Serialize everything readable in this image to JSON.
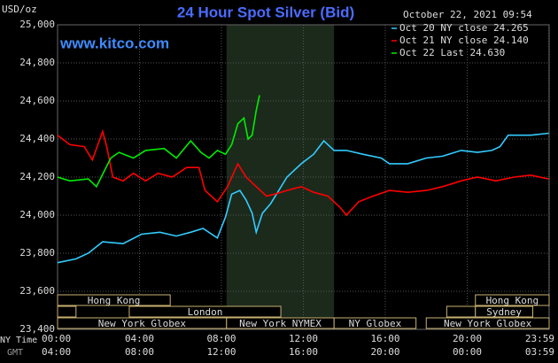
{
  "chart_data": {
    "type": "line",
    "title": "24 Hour Spot Silver (Bid)",
    "unit_label": "USD/oz",
    "timestamp": "October 22, 2021 09:54",
    "site": "www.kitco.com",
    "x_row_label": "NY Time",
    "x2_row_label": "GMT",
    "xlim": [
      0,
      24
    ],
    "xticks": [
      {
        "value": 0,
        "label": "00:00"
      },
      {
        "value": 4,
        "label": "04:00"
      },
      {
        "value": 8,
        "label": "08:00"
      },
      {
        "value": 12,
        "label": "12:00"
      },
      {
        "value": 16,
        "label": "16:00"
      },
      {
        "value": 20,
        "label": "20:00"
      },
      {
        "value": 23.983,
        "label": "23:59"
      }
    ],
    "xticks_gmt": [
      "04:00",
      "08:00",
      "12:00",
      "16:00",
      "20:00",
      "00:00",
      "03:59"
    ],
    "ylim": [
      23.4,
      25.0
    ],
    "yticks": [
      {
        "value": 23.4,
        "label": "23,400"
      },
      {
        "value": 23.6,
        "label": "23,600"
      },
      {
        "value": 23.8,
        "label": "23,800"
      },
      {
        "value": 24.0,
        "label": "24,000"
      },
      {
        "value": 24.2,
        "label": "24,200"
      },
      {
        "value": 24.4,
        "label": "24,400"
      },
      {
        "value": 24.6,
        "label": "24,600"
      },
      {
        "value": 24.8,
        "label": "24,800"
      },
      {
        "value": 25.0,
        "label": "25,000"
      }
    ],
    "grid": true,
    "highlight": [
      8.25,
      13.5
    ],
    "series": [
      {
        "name": "Oct 20 NY close",
        "color": "#33ccff",
        "last": {
          "value": 24.265,
          "label": "24.265"
        },
        "x": [
          0,
          0.9,
          1.5,
          2.2,
          3.2,
          4.1,
          5.0,
          5.8,
          6.5,
          7.1,
          7.8,
          8.2,
          8.5,
          8.9,
          9.2,
          9.5,
          9.7,
          10.0,
          10.4,
          10.8,
          11.2,
          11.9,
          12.5,
          13.0,
          13.5,
          14.1,
          14.9,
          15.8,
          16.2,
          17.1,
          18.0,
          18.8,
          19.7,
          20.5,
          21.2,
          21.6,
          22.0,
          23.1,
          23.98
        ],
        "values": [
          23.75,
          23.77,
          23.8,
          23.86,
          23.85,
          23.9,
          23.91,
          23.89,
          23.91,
          23.93,
          23.88,
          23.99,
          24.11,
          24.13,
          24.08,
          24.01,
          23.91,
          24.01,
          24.06,
          24.13,
          24.2,
          24.27,
          24.32,
          24.39,
          24.34,
          24.34,
          24.32,
          24.3,
          24.27,
          24.27,
          24.3,
          24.31,
          24.34,
          24.33,
          24.34,
          24.36,
          24.42,
          24.42,
          24.43
        ]
      },
      {
        "name": "Oct 21 NY close",
        "color": "#ff0000",
        "last": {
          "value": 24.14,
          "label": "24.140"
        },
        "x": [
          0,
          0.6,
          1.3,
          1.7,
          2.2,
          2.4,
          2.7,
          3.2,
          3.7,
          4.3,
          4.9,
          5.6,
          6.3,
          6.9,
          7.2,
          7.8,
          8.3,
          8.8,
          9.2,
          9.7,
          10.2,
          10.6,
          11.2,
          11.9,
          12.5,
          13.2,
          13.8,
          14.1,
          14.7,
          15.4,
          16.2,
          17.1,
          18.0,
          18.8,
          19.7,
          20.5,
          21.4,
          22.3,
          23.1,
          23.98
        ],
        "values": [
          24.42,
          24.37,
          24.36,
          24.29,
          24.44,
          24.36,
          24.2,
          24.18,
          24.22,
          24.18,
          24.22,
          24.2,
          24.25,
          24.25,
          24.13,
          24.07,
          24.15,
          24.27,
          24.2,
          24.15,
          24.1,
          24.11,
          24.13,
          24.15,
          24.12,
          24.1,
          24.04,
          24.0,
          24.07,
          24.1,
          24.13,
          24.12,
          24.13,
          24.15,
          24.18,
          24.2,
          24.18,
          24.2,
          24.21,
          24.19
        ]
      },
      {
        "name": "Oct 22 Last",
        "color": "#00ee00",
        "last": {
          "value": 24.63,
          "label": "24.630"
        },
        "x": [
          0,
          0.6,
          1.5,
          1.9,
          2.6,
          3.0,
          3.7,
          4.3,
          5.2,
          5.8,
          6.5,
          7.0,
          7.4,
          7.8,
          8.2,
          8.5,
          8.8,
          9.1,
          9.3,
          9.5,
          9.7,
          9.86
        ],
        "values": [
          24.2,
          24.18,
          24.19,
          24.15,
          24.3,
          24.33,
          24.3,
          24.34,
          24.35,
          24.3,
          24.39,
          24.33,
          24.3,
          24.34,
          24.32,
          24.37,
          24.48,
          24.51,
          24.4,
          24.42,
          24.55,
          24.63
        ]
      }
    ],
    "sessions": [
      {
        "label": "Hong Kong",
        "row": 0,
        "start": 0,
        "end": 5.5
      },
      {
        "label": "Hong Kong",
        "row": 0,
        "start": 20.4,
        "end": 24
      },
      {
        "label": null,
        "row": 1,
        "start": 0,
        "end": 0.9
      },
      {
        "label": "London",
        "row": 1,
        "start": 3.5,
        "end": 10.9
      },
      {
        "label": null,
        "row": 1,
        "start": 19.0,
        "end": 20.4
      },
      {
        "label": "Sydney",
        "row": 1,
        "start": 20.4,
        "end": 23.2
      },
      {
        "label": "New York Globex",
        "row": 2,
        "start": 0,
        "end": 8.25
      },
      {
        "label": "New York NYMEX",
        "row": 2,
        "start": 8.25,
        "end": 13.5
      },
      {
        "label": "NY Globex",
        "row": 2,
        "start": 13.5,
        "end": 17.5
      },
      {
        "label": "New York Globex",
        "row": 2,
        "start": 18.0,
        "end": 24
      }
    ]
  }
}
